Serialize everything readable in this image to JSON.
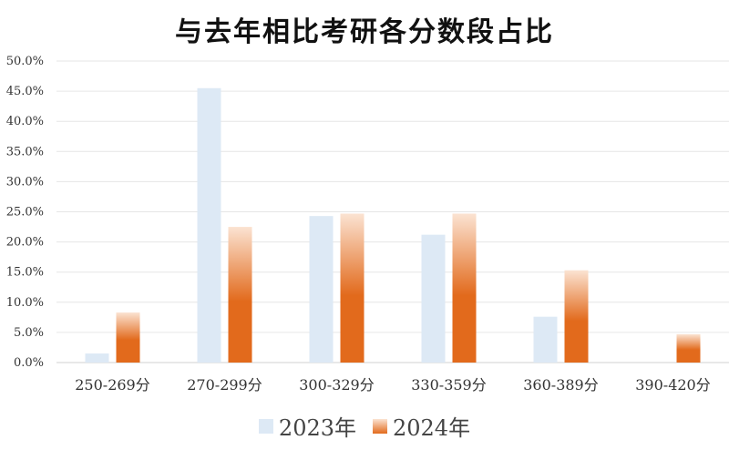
{
  "chart_data": {
    "type": "bar",
    "title": "与去年相比考研各分数段占比",
    "categories": [
      "250-269分",
      "270-299分",
      "300-329分",
      "330-359分",
      "360-389分",
      "390-420分"
    ],
    "series": [
      {
        "name": "2023年",
        "values": [
          1.5,
          45.5,
          24.3,
          21.2,
          7.6,
          0.0
        ]
      },
      {
        "name": "2024年",
        "values": [
          8.3,
          22.5,
          24.7,
          24.7,
          15.3,
          4.7
        ]
      }
    ],
    "yticks": [
      "0.0%",
      "5.0%",
      "10.0%",
      "15.0%",
      "20.0%",
      "25.0%",
      "30.0%",
      "35.0%",
      "40.0%",
      "45.0%",
      "50.0%"
    ],
    "ylim": [
      0,
      50
    ],
    "y_unit": "%",
    "grid": true,
    "legend_position": "bottom"
  },
  "colors": {
    "series_2023": "#dde9f5",
    "series_2024_top": "#fbe3d2",
    "series_2024_bottom": "#e26a1c",
    "gridline": "#e6e6e6",
    "axis": "#d0d0d0"
  }
}
